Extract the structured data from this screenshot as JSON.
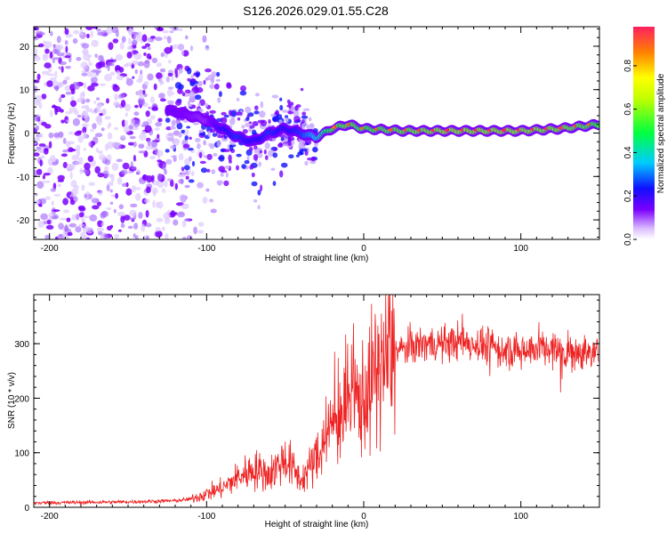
{
  "title": "S126.2026.029.01.55.C28",
  "colors": {
    "snr_line": "#ee2222",
    "ridge_low": "#7b00ff",
    "frame": "#000000"
  },
  "chart_data": [
    {
      "type": "heatmap",
      "name": "spectrogram",
      "xlabel": "Height of straight line (km)",
      "ylabel": "Frequency (Hz)",
      "xlim": [
        -210,
        150
      ],
      "ylim": [
        -24.5,
        24.5
      ],
      "xticks": [
        -200,
        -100,
        0,
        100
      ],
      "xtick_labels": [
        "-200",
        "-100",
        "0",
        "100"
      ],
      "yticks": [
        -20,
        -10,
        0,
        10,
        20
      ],
      "ytick_labels": [
        "-20",
        "-10",
        "0",
        "10",
        "20"
      ],
      "ridge": {
        "x": [
          -120,
          -100,
          -90,
          -80,
          -70,
          -60,
          -50,
          -40,
          -30,
          -20,
          -10,
          0,
          25,
          50,
          75,
          100,
          125,
          150
        ],
        "freq": [
          5,
          3,
          1,
          -1,
          -2,
          0,
          1,
          0,
          -1,
          1,
          2,
          1,
          0.5,
          0.5,
          0.5,
          0.5,
          1,
          2
        ],
        "amplitude": [
          0.2,
          0.15,
          0.3,
          0.35,
          0.3,
          0.35,
          0.3,
          0.35,
          0.5,
          0.7,
          0.75,
          0.7,
          0.75,
          0.8,
          0.8,
          0.8,
          0.78,
          0.7
        ]
      },
      "noise_region_km": [
        -210,
        -110
      ]
    },
    {
      "type": "colorbar",
      "name": "amplitude-colorbar",
      "label": "Normalized spectral amplitude",
      "range": [
        0,
        0.98
      ],
      "ticks": [
        0.0,
        0.2,
        0.4,
        0.6,
        0.8
      ],
      "tick_labels": [
        "0.0",
        "0.2",
        "0.4",
        "0.6",
        "0.8"
      ]
    },
    {
      "type": "line",
      "name": "snr",
      "xlabel": "Height of straight line (km)",
      "ylabel": "SNR (10 * v/v)",
      "xlim": [
        -210,
        150
      ],
      "ylim": [
        0,
        390
      ],
      "xticks": [
        -200,
        -100,
        0,
        100
      ],
      "xtick_labels": [
        "-200",
        "-100",
        "0",
        "100"
      ],
      "yticks": [
        0,
        100,
        200,
        300
      ],
      "ytick_labels": [
        "0",
        "100",
        "200",
        "300"
      ],
      "x": [
        -210,
        -180,
        -150,
        -120,
        -110,
        -100,
        -90,
        -80,
        -70,
        -60,
        -50,
        -40,
        -30,
        -20,
        -10,
        0,
        10,
        20,
        30,
        40,
        50,
        60,
        70,
        80,
        90,
        100,
        110,
        120,
        130,
        140,
        150
      ],
      "y": [
        8,
        9,
        10,
        12,
        15,
        25,
        35,
        55,
        70,
        60,
        90,
        50,
        90,
        150,
        190,
        200,
        260,
        285,
        295,
        300,
        300,
        305,
        300,
        295,
        285,
        290,
        295,
        290,
        285,
        285,
        280
      ]
    }
  ]
}
